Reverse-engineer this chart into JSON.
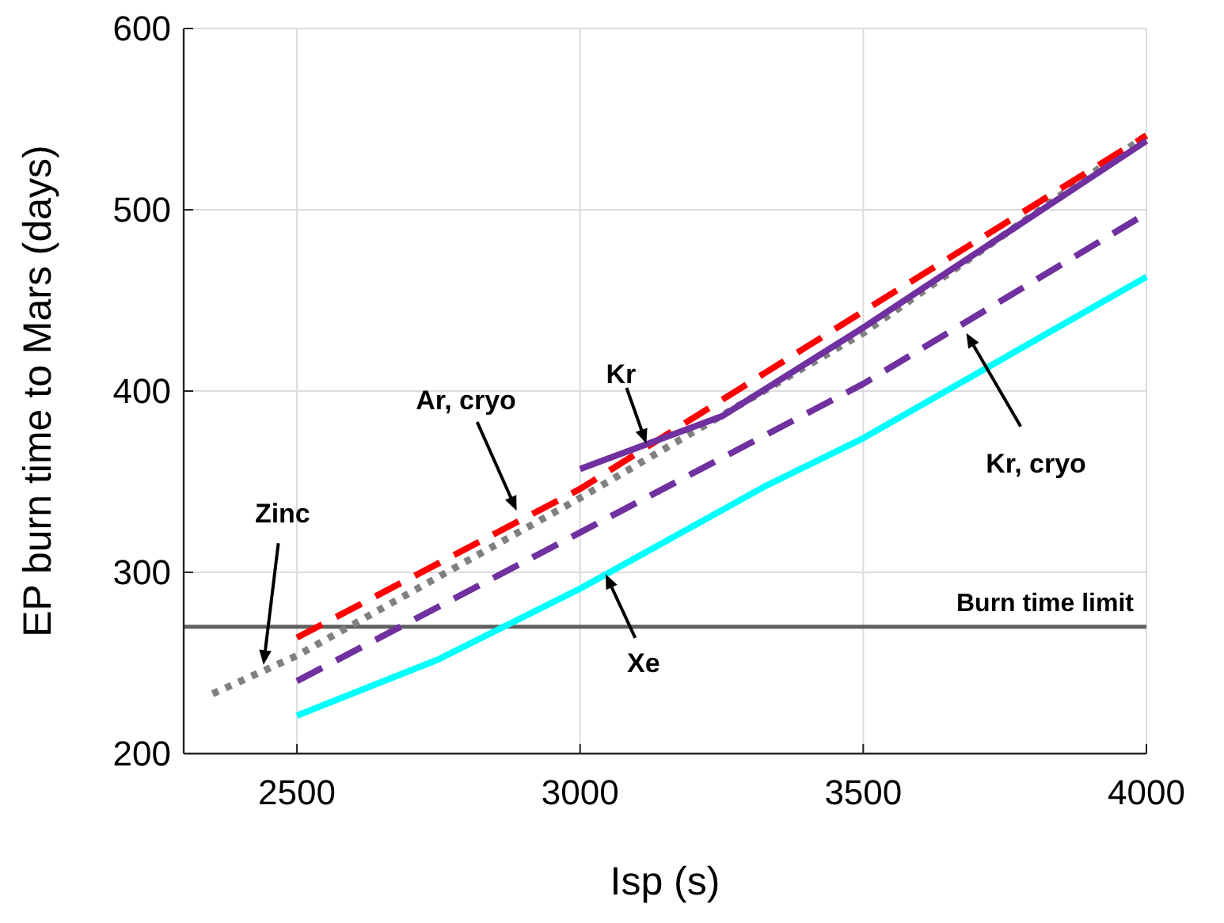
{
  "chart_data": {
    "type": "line",
    "xlabel": "Isp (s)",
    "ylabel": "EP burn time to Mars (days)",
    "xlim": [
      2300,
      4000
    ],
    "xticks": [
      2500,
      3000,
      3500,
      4000
    ],
    "ylim": [
      200,
      600
    ],
    "yticks": [
      200,
      300,
      400,
      500,
      600
    ],
    "grid": true,
    "series": [
      {
        "color": "#808080",
        "line_style": "dotted",
        "x": [
          2351,
          2500,
          3000,
          3500,
          4000
        ],
        "values": [
          233,
          254,
          341,
          432,
          541
        ]
      },
      {
        "color": "#ff0000",
        "line_style": "dashed",
        "x": [
          2500,
          3000,
          3500,
          4000
        ],
        "values": [
          264,
          346,
          444,
          541
        ]
      },
      {
        "color": "#7030a0",
        "line_style": "solid",
        "x": [
          3000,
          3250,
          3500,
          4000
        ],
        "values": [
          357,
          386,
          435,
          538
        ]
      },
      {
        "color": "#7030a0",
        "line_style": "dashed",
        "x": [
          2500,
          3000,
          3500,
          4000
        ],
        "values": [
          240,
          322,
          404,
          498
        ]
      },
      {
        "color": "#00ffff",
        "line_style": "solid",
        "x": [
          2500,
          2750,
          3000,
          3330,
          3500,
          4000
        ],
        "values": [
          221,
          252,
          291,
          348,
          374,
          463
        ]
      }
    ],
    "ref_lines": [
      {
        "axis": "y",
        "value": 270,
        "label": "Burn time limit",
        "color": "#606060"
      }
    ],
    "annotations": [
      {
        "text": "Zinc",
        "x": 2441,
        "y": 249
      },
      {
        "text": "Ar, cryo",
        "x": 2888,
        "y": 334
      },
      {
        "text": "Kr",
        "x": 3117,
        "y": 371
      },
      {
        "text": "Kr, cryo",
        "x": 3682,
        "y": 432
      },
      {
        "text": "Xe",
        "x": 3045,
        "y": 299
      }
    ]
  }
}
